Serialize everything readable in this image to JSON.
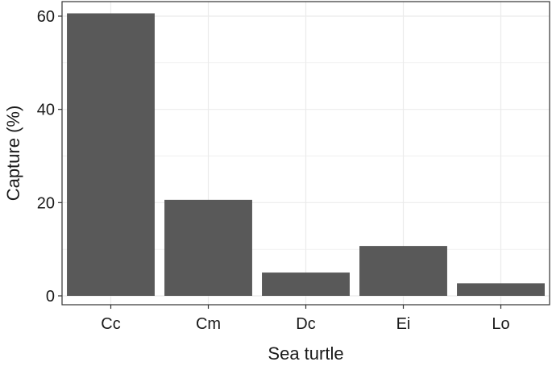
{
  "chart_data": {
    "type": "bar",
    "title": "",
    "xlabel": "Sea turtle",
    "ylabel": "Capture (%)",
    "categories": [
      "Cc",
      "Cm",
      "Dc",
      "Ei",
      "Lo"
    ],
    "values": [
      60.6,
      20.6,
      5.0,
      10.7,
      2.7
    ],
    "ylim": [
      0,
      64
    ],
    "yticks": [
      0,
      20,
      40,
      60
    ],
    "grid": true,
    "legend": "none",
    "bar_color": "#595959",
    "grid_color": "#ebebeb",
    "panel_border_color": "#333333"
  }
}
